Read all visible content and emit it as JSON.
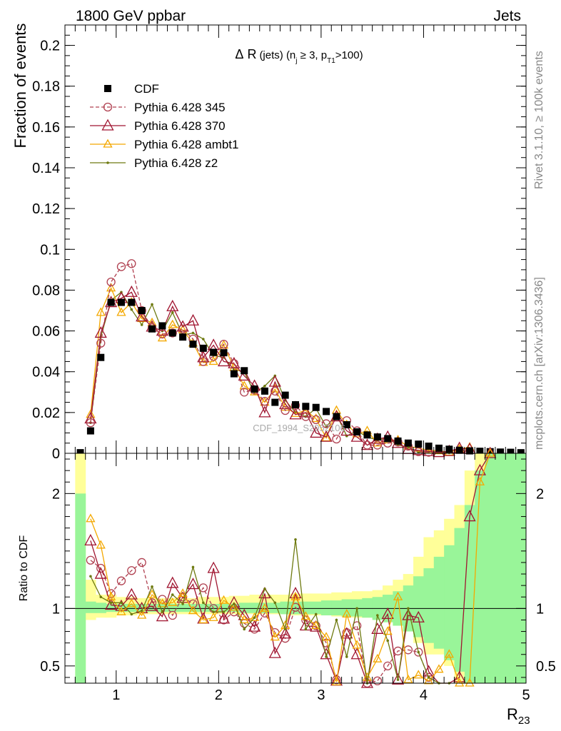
{
  "header": {
    "left": "1800 GeV ppbar",
    "right": "Jets"
  },
  "side_labels": {
    "rivet": "Rivet 3.1.10, ≥ 100k events",
    "mcplots": "mcplots.cern.ch [arXiv:1306.3436]"
  },
  "watermark": "CDF_1994_S2952106",
  "colors": {
    "data": "#000000",
    "p345": "#b04050",
    "p370": "#a01530",
    "ambt1": "#f4a800",
    "z2": "#6e7a10",
    "band_yellow": "#ffff99",
    "band_green": "#99f599"
  },
  "chart_data": [
    {
      "type": "line",
      "title": "Δ R (jets) (n_j ≥ 3, p_T1>100)",
      "title_parts": {
        "delta": "Δ",
        "r": "R",
        "jets": "(jets) (n",
        "j_sub": "j",
        "ge3": " ≥ 3, p",
        "t1_sub": "T1",
        "gt100": ">100)"
      },
      "ylabel": "Fraction of events",
      "xlim": [
        0.5,
        5.0
      ],
      "ylim": [
        0,
        0.21
      ],
      "yticks": [
        0,
        0.02,
        0.04,
        0.06,
        0.08,
        0.1,
        0.12,
        0.14,
        0.16,
        0.18,
        0.2
      ],
      "ytick_labels": [
        "0",
        "0.02",
        "0.04",
        "0.06",
        "0.08",
        "0.1",
        "0.12",
        "0.14",
        "0.16",
        "0.18",
        "0.2"
      ],
      "x": [
        0.65,
        0.75,
        0.85,
        0.95,
        1.05,
        1.15,
        1.25,
        1.35,
        1.45,
        1.55,
        1.65,
        1.75,
        1.85,
        1.95,
        2.05,
        2.15,
        2.25,
        2.35,
        2.45,
        2.55,
        2.65,
        2.75,
        2.85,
        2.95,
        3.05,
        3.15,
        3.25,
        3.35,
        3.45,
        3.55,
        3.65,
        3.75,
        3.85,
        3.95,
        4.05,
        4.15,
        4.25,
        4.35,
        4.45,
        4.55,
        4.65,
        4.75,
        4.85,
        4.95
      ],
      "legend": [
        {
          "label": "CDF",
          "key": "cdf"
        },
        {
          "label": "Pythia 6.428 345",
          "key": "p345"
        },
        {
          "label": "Pythia 6.428 370",
          "key": "p370"
        },
        {
          "label": "Pythia 6.428 ambt1",
          "key": "ambt1"
        },
        {
          "label": "Pythia 6.428 z2",
          "key": "z2"
        }
      ],
      "series": [
        {
          "name": "CDF",
          "key": "cdf",
          "values": [
            0.0003,
            0.011,
            0.047,
            0.074,
            0.074,
            0.074,
            0.07,
            0.061,
            0.0625,
            0.059,
            0.057,
            0.0535,
            0.0515,
            0.0495,
            0.0493,
            0.039,
            0.0405,
            0.0315,
            0.0305,
            0.025,
            0.0285,
            0.0238,
            0.023,
            0.0225,
            0.0205,
            0.018,
            0.014,
            0.0105,
            0.009,
            0.008,
            0.0072,
            0.006,
            0.005,
            0.0045,
            0.0035,
            0.0025,
            0.002,
            0.0015,
            0.0012,
            0.001,
            0.0008,
            0.0006,
            0.0005,
            0.0003
          ]
        },
        {
          "name": "Pythia 6.428 345",
          "key": "p345",
          "values": [
            null,
            0.015,
            0.054,
            0.084,
            0.0915,
            0.093,
            0.07,
            0.0615,
            0.0585,
            0.059,
            0.061,
            0.056,
            0.045,
            0.0475,
            0.0535,
            0.044,
            0.03,
            0.031,
            0.0255,
            0.0305,
            0.021,
            0.0235,
            0.018,
            0.0165,
            0.0145,
            0.007,
            0.016,
            0.011,
            0.004,
            0.004,
            0.005,
            0.0055,
            0.0035,
            0.0008,
            0.0005,
            null,
            null,
            null,
            null,
            null,
            null,
            null,
            null,
            null
          ]
        },
        {
          "name": "Pythia 6.428 370",
          "key": "p370",
          "values": [
            null,
            0.017,
            0.059,
            0.074,
            0.076,
            0.079,
            0.067,
            0.062,
            0.06,
            0.072,
            0.062,
            0.065,
            0.047,
            0.053,
            0.045,
            0.044,
            0.038,
            0.033,
            0.02,
            0.035,
            0.024,
            0.019,
            0.02,
            0.01,
            0.008,
            0.018,
            0.011,
            0.008,
            0.004,
            0.007,
            0.008,
            0.005,
            0.002,
            0.0015,
            0.001,
            0.0005,
            0.001,
            0.0025,
            0.002,
            null,
            null,
            null,
            null,
            null
          ]
        },
        {
          "name": "Pythia 6.428 ambt1",
          "key": "ambt1",
          "values": [
            null,
            0.019,
            0.069,
            0.081,
            0.069,
            0.074,
            0.066,
            0.064,
            0.0565,
            0.063,
            0.0605,
            0.054,
            0.0445,
            0.045,
            0.053,
            0.042,
            0.033,
            0.03,
            0.025,
            0.0315,
            0.0225,
            0.0195,
            0.021,
            0.017,
            0.0075,
            0.021,
            0.014,
            0.0095,
            0.011,
            0.005,
            0.0065,
            0.0065,
            0.0035,
            0.0025,
            0.0015,
            0.0012,
            0.0005,
            0.002,
            0.003,
            null,
            null,
            null,
            null,
            null
          ]
        },
        {
          "name": "Pythia 6.428 z2",
          "key": "z2",
          "values": [
            null,
            0.015,
            0.057,
            0.075,
            0.079,
            0.0705,
            0.063,
            0.073,
            0.06,
            0.069,
            0.058,
            0.059,
            0.056,
            0.048,
            0.047,
            0.041,
            0.04,
            0.0295,
            0.033,
            0.038,
            0.026,
            0.02,
            0.018,
            0.022,
            0.013,
            0.019,
            0.0085,
            0.011,
            0.008,
            0.0065,
            0.0075,
            0.004,
            0.003,
            0.0005,
            0.0008,
            0.0003,
            0.0002,
            null,
            null,
            null,
            null,
            null,
            null,
            null
          ]
        }
      ]
    },
    {
      "type": "line",
      "ylabel": "Ratio to CDF",
      "xlabel": "R",
      "xlabel_sub": "23",
      "xlim": [
        0.5,
        5.0
      ],
      "ylim": [
        0.35,
        2.35
      ],
      "xticks": [
        1,
        2,
        3,
        4,
        5
      ],
      "xtick_labels": [
        "1",
        "2",
        "3",
        "4",
        "5"
      ],
      "yticks": [
        0.5,
        1,
        2
      ],
      "ytick_labels": [
        "0.5",
        "1",
        "2"
      ],
      "x": [
        0.75,
        0.85,
        0.95,
        1.05,
        1.15,
        1.25,
        1.35,
        1.45,
        1.55,
        1.65,
        1.75,
        1.85,
        1.95,
        2.05,
        2.15,
        2.25,
        2.35,
        2.45,
        2.55,
        2.65,
        2.75,
        2.85,
        2.95,
        3.05,
        3.15,
        3.25,
        3.35,
        3.45,
        3.55,
        3.65,
        3.75,
        3.85,
        3.95,
        4.05,
        4.15,
        4.25,
        4.35,
        4.45,
        4.55,
        4.65
      ],
      "band_edges": [
        0.6,
        0.7,
        0.8,
        0.9,
        1.0,
        1.1,
        1.2,
        1.3,
        1.4,
        1.5,
        1.6,
        1.7,
        1.8,
        1.9,
        2.0,
        2.1,
        2.2,
        2.3,
        2.4,
        2.5,
        2.6,
        2.7,
        2.8,
        2.9,
        3.0,
        3.1,
        3.2,
        3.3,
        3.4,
        3.5,
        3.6,
        3.7,
        3.8,
        3.9,
        4.0,
        4.1,
        4.2,
        4.3,
        4.4,
        4.5,
        4.6,
        4.7,
        4.8,
        4.9,
        5.0
      ],
      "band_yellow": [
        [
          0.35,
          2.35
        ],
        [
          0.9,
          1.25
        ],
        [
          0.92,
          1.12
        ],
        [
          0.92,
          1.12
        ],
        [
          0.94,
          1.1
        ],
        [
          0.94,
          1.1
        ],
        [
          0.95,
          1.09
        ],
        [
          0.95,
          1.09
        ],
        [
          0.95,
          1.09
        ],
        [
          0.95,
          1.09
        ],
        [
          0.95,
          1.09
        ],
        [
          0.95,
          1.09
        ],
        [
          0.95,
          1.1
        ],
        [
          0.95,
          1.1
        ],
        [
          0.95,
          1.1
        ],
        [
          0.95,
          1.11
        ],
        [
          0.95,
          1.11
        ],
        [
          0.95,
          1.12
        ],
        [
          0.95,
          1.12
        ],
        [
          0.95,
          1.12
        ],
        [
          0.95,
          1.12
        ],
        [
          0.94,
          1.13
        ],
        [
          0.94,
          1.13
        ],
        [
          0.94,
          1.13
        ],
        [
          0.94,
          1.13
        ],
        [
          0.93,
          1.14
        ],
        [
          0.93,
          1.14
        ],
        [
          0.92,
          1.15
        ],
        [
          0.92,
          1.15
        ],
        [
          0.9,
          1.16
        ],
        [
          0.88,
          1.2
        ],
        [
          0.85,
          1.25
        ],
        [
          0.8,
          1.3
        ],
        [
          0.7,
          1.45
        ],
        [
          0.6,
          1.62
        ],
        [
          0.6,
          1.68
        ],
        [
          0.5,
          1.78
        ],
        [
          0.35,
          1.9
        ],
        [
          0.35,
          2.2
        ],
        [
          0.35,
          2.35
        ],
        [
          0.35,
          2.35
        ],
        [
          0.35,
          2.35
        ],
        [
          0.35,
          2.35
        ],
        [
          0.35,
          2.35
        ]
      ],
      "band_green": [
        [
          0.35,
          2.0
        ],
        [
          0.96,
          1.06
        ],
        [
          0.96,
          1.05
        ],
        [
          0.97,
          1.04
        ],
        [
          0.97,
          1.04
        ],
        [
          0.97,
          1.04
        ],
        [
          0.97,
          1.04
        ],
        [
          0.97,
          1.04
        ],
        [
          0.97,
          1.04
        ],
        [
          0.97,
          1.04
        ],
        [
          0.97,
          1.04
        ],
        [
          0.97,
          1.04
        ],
        [
          0.97,
          1.04
        ],
        [
          0.97,
          1.04
        ],
        [
          0.97,
          1.04
        ],
        [
          0.97,
          1.04
        ],
        [
          0.96,
          1.05
        ],
        [
          0.96,
          1.05
        ],
        [
          0.96,
          1.05
        ],
        [
          0.96,
          1.05
        ],
        [
          0.95,
          1.06
        ],
        [
          0.95,
          1.06
        ],
        [
          0.95,
          1.06
        ],
        [
          0.95,
          1.06
        ],
        [
          0.94,
          1.07
        ],
        [
          0.94,
          1.07
        ],
        [
          0.93,
          1.08
        ],
        [
          0.93,
          1.08
        ],
        [
          0.92,
          1.09
        ],
        [
          0.9,
          1.1
        ],
        [
          0.88,
          1.12
        ],
        [
          0.85,
          1.15
        ],
        [
          0.8,
          1.2
        ],
        [
          0.75,
          1.28
        ],
        [
          0.7,
          1.35
        ],
        [
          0.65,
          1.45
        ],
        [
          0.55,
          1.55
        ],
        [
          0.45,
          1.7
        ],
        [
          0.35,
          1.9
        ],
        [
          0.35,
          2.2
        ],
        [
          0.35,
          2.35
        ],
        [
          0.35,
          2.35
        ],
        [
          0.35,
          2.35
        ],
        [
          0.35,
          2.35
        ]
      ],
      "series": [
        {
          "name": "Pythia 6.428 345",
          "key": "p345",
          "values": [
            1.42,
            1.35,
            1.13,
            1.24,
            1.33,
            1.4,
            1.05,
            1.08,
            0.94,
            1.1,
            1.04,
            1.18,
            1.0,
            0.9,
            0.97,
            0.87,
            0.82,
            0.96,
            0.79,
            0.74,
            1.01,
            0.9,
            0.85,
            0.7,
            0.38,
            0.79,
            0.85,
            0.35,
            0.37,
            0.5,
            0.63,
            0.64,
            0.62,
            0.4,
            null,
            null,
            null,
            null,
            null,
            null
          ]
        },
        {
          "name": "Pythia 6.428 370",
          "key": "p370",
          "values": [
            1.59,
            1.3,
            1.03,
            1.02,
            1.12,
            1.0,
            1.02,
            0.93,
            1.22,
            1.09,
            1.21,
            0.91,
            1.35,
            0.91,
            1.05,
            0.94,
            0.84,
            1.13,
            0.61,
            0.78,
            1.13,
            0.85,
            0.84,
            0.6,
            0.37,
            0.78,
            0.6,
            0.35,
            0.82,
            0.95,
            0.38,
            0.94,
            0.92,
            0.45,
            0.3,
            0.32,
            0.4,
            1.8,
            2.2,
            2.35
          ]
        },
        {
          "name": "Pythia 6.428 ambt1",
          "key": "ambt1",
          "values": [
            1.78,
            1.55,
            1.1,
            0.97,
            1.04,
            0.94,
            1.12,
            1.04,
            1.05,
            1.13,
            0.98,
            0.9,
            0.92,
            1.07,
            1.01,
            0.9,
            0.92,
            1.0,
            0.75,
            0.85,
            1.1,
            0.93,
            0.85,
            0.75,
            0.36,
            0.95,
            0.68,
            0.4,
            0.56,
            0.8,
            1.1,
            0.38,
            0.42,
            0.37,
            0.47,
            0.6,
            0.35,
            0.35,
            2.1,
            2.35
          ]
        },
        {
          "name": "Pythia 6.428 z2",
          "key": "z2",
          "values": [
            1.28,
            1.1,
            1.05,
            1.05,
            0.95,
            0.98,
            1.19,
            0.97,
            1.12,
            1.04,
            1.36,
            1.05,
            0.97,
            0.97,
            1.04,
            0.82,
            0.92,
            1.17,
            1.05,
            0.82,
            1.6,
            0.82,
            0.95,
            0.58,
            0.9,
            0.58,
            1.0,
            0.35,
            0.94,
            0.72,
            0.38,
            1.0,
            0.62,
            0.4,
            0.35,
            0.35,
            null,
            null,
            null,
            null
          ]
        }
      ]
    }
  ]
}
